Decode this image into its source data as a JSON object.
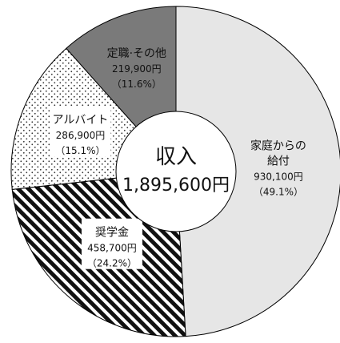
{
  "chart_data": {
    "type": "pie",
    "center_title": "収入",
    "center_total": "1,895,600円",
    "slices": [
      {
        "name": "家庭からの給付",
        "name_lines": [
          "家庭からの",
          "給付"
        ],
        "value": 930100,
        "value_label": "930,100円",
        "percent": 49.1,
        "percent_label": "（49.1%）",
        "fill": "#e6e6e6",
        "pattern": "solid"
      },
      {
        "name": "奨学金",
        "name_lines": [
          "奨学金"
        ],
        "value": 458700,
        "value_label": "458,700円",
        "percent": 24.2,
        "percent_label": "（24.2%）",
        "fill": "#111111",
        "pattern": "diagonal-stripes"
      },
      {
        "name": "アルバイト",
        "name_lines": [
          "アルバイト"
        ],
        "value": 286900,
        "value_label": "286,900円",
        "percent": 15.1,
        "percent_label": "（15.1%）",
        "fill": "#999999",
        "pattern": "dots"
      },
      {
        "name": "定職・その他",
        "name_lines": [
          "定職·その他"
        ],
        "value": 219900,
        "value_label": "219,900円",
        "percent": 11.6,
        "percent_label": "（11.6%）",
        "fill": "#7a7a7a",
        "pattern": "solid"
      }
    ]
  }
}
